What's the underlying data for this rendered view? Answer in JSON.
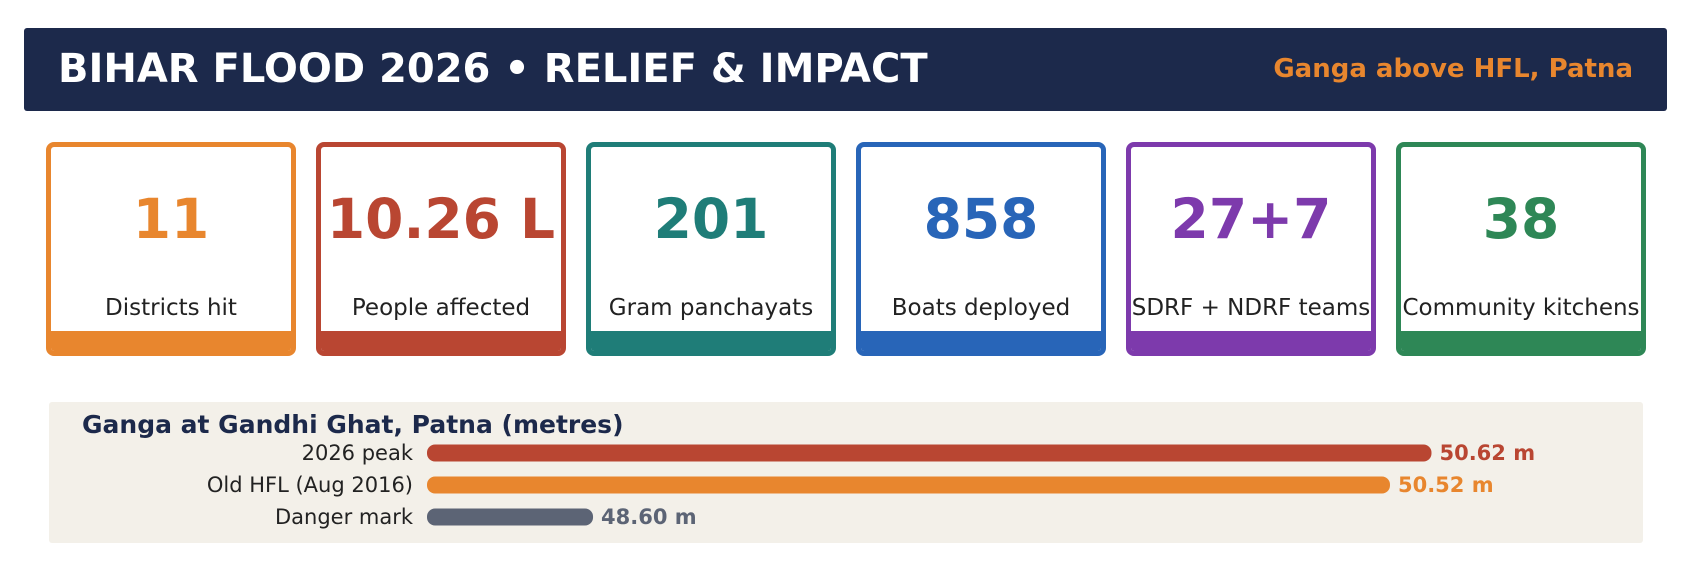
{
  "header": {
    "title": "BIHAR FLOOD 2026  •  RELIEF & IMPACT",
    "subtitle": "Ganga above HFL, Patna",
    "background": "#1c294b",
    "subtitle_color": "#e8862e"
  },
  "cards": [
    {
      "value": "11",
      "label": "Districts hit",
      "color": "#e8862e"
    },
    {
      "value": "10.26 L",
      "label": "People affected",
      "color": "#b94632"
    },
    {
      "value": "201",
      "label": "Gram panchayats",
      "color": "#1f7d78"
    },
    {
      "value": "858",
      "label": "Boats deployed",
      "color": "#2865b8"
    },
    {
      "value": "27+7",
      "label": "SDRF + NDRF teams",
      "color": "#7d3aac"
    },
    {
      "value": "38",
      "label": "Community kitchens",
      "color": "#2e8756"
    }
  ],
  "chart_data": {
    "type": "bar",
    "orientation": "horizontal",
    "title": "Ganga at Gandhi Ghat, Patna (metres)",
    "categories": [
      "2026 peak",
      "Old HFL (Aug 2016)",
      "Danger mark"
    ],
    "values": [
      50.62,
      50.52,
      48.6
    ],
    "value_labels": [
      "50.62 m",
      "50.52 m",
      "48.60 m"
    ],
    "colors": [
      "#b94632",
      "#e8862e",
      "#5c6475"
    ],
    "xlim": [
      48.2,
      50.72
    ],
    "grid": false,
    "legend": "none"
  }
}
